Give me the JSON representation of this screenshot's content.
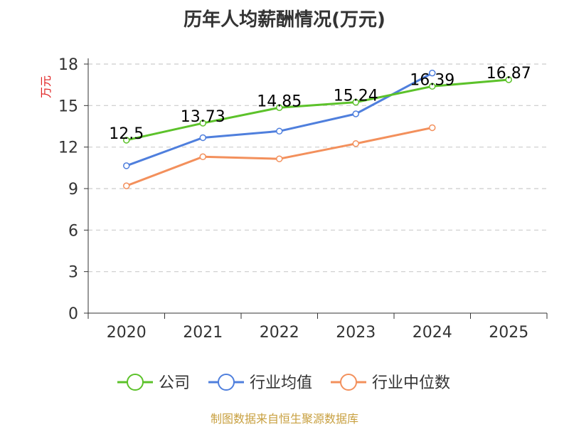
{
  "chart_data": {
    "type": "line",
    "title": "历年人均薪酬情况(万元)",
    "ylabel": "万元",
    "xlabel": "",
    "categories": [
      "2020",
      "2021",
      "2022",
      "2023",
      "2024",
      "2025"
    ],
    "ylim": [
      0,
      18
    ],
    "yticks": [
      0,
      3,
      6,
      9,
      12,
      15,
      18
    ],
    "grid": true,
    "legend_position": "bottom",
    "series": [
      {
        "name": "公司",
        "color": "#5cc22a",
        "values": [
          12.5,
          13.73,
          14.85,
          15.24,
          16.39,
          16.87
        ],
        "labels": [
          "12.5",
          "13.73",
          "14.85",
          "15.24",
          "16.39",
          "16.87"
        ]
      },
      {
        "name": "行业均值",
        "color": "#4f7fdd",
        "values": [
          10.65,
          12.68,
          13.15,
          14.4,
          17.35,
          null
        ]
      },
      {
        "name": "行业中位数",
        "color": "#f3905c",
        "values": [
          9.2,
          11.3,
          11.15,
          12.25,
          13.4,
          null
        ]
      }
    ]
  },
  "source": "制图数据来自恒生聚源数据库",
  "colors": {
    "axis": "#333333",
    "grid": "#cccccc",
    "ylabel": "#e02020",
    "source": "#c8a040"
  }
}
